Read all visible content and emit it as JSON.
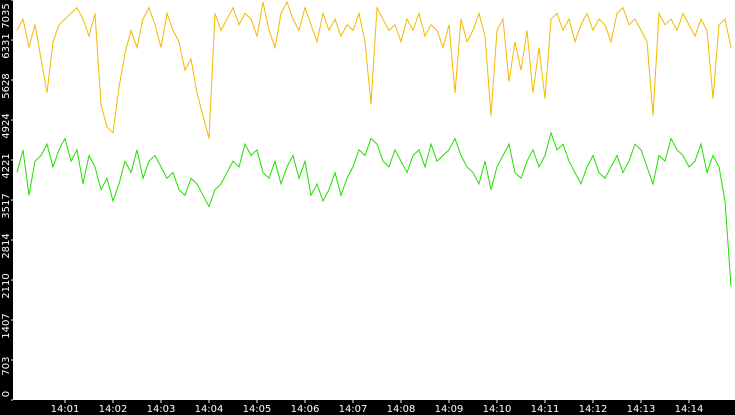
{
  "chart_data": {
    "type": "line",
    "categories": [
      null,
      null,
      null,
      null,
      null,
      null,
      null,
      null,
      "14:01",
      null,
      null,
      null,
      null,
      null,
      null,
      null,
      "14:02",
      null,
      null,
      null,
      null,
      null,
      null,
      null,
      "14:03",
      null,
      null,
      null,
      null,
      null,
      null,
      null,
      "14:04",
      null,
      null,
      null,
      null,
      null,
      null,
      null,
      "14:05",
      null,
      null,
      null,
      null,
      null,
      null,
      null,
      "14:06",
      null,
      null,
      null,
      null,
      null,
      null,
      null,
      "14:07",
      null,
      null,
      null,
      null,
      null,
      null,
      null,
      "14:08",
      null,
      null,
      null,
      null,
      null,
      null,
      null,
      "14:09",
      null,
      null,
      null,
      null,
      null,
      null,
      null,
      "14:10",
      null,
      null,
      null,
      null,
      null,
      null,
      null,
      "14:11",
      null,
      null,
      null,
      null,
      null,
      null,
      null,
      "14:12",
      null,
      null,
      null,
      null,
      null,
      null,
      null,
      "14:13",
      null,
      null,
      null,
      null,
      null,
      null,
      null,
      "14:14",
      null,
      null,
      null,
      null,
      null,
      null,
      null
    ],
    "series": [
      {
        "color": "#f5b800",
        "values": [
          6500,
          6700,
          6200,
          6600,
          6000,
          5400,
          6300,
          6600,
          6700,
          6800,
          6900,
          6700,
          6400,
          6800,
          5200,
          4800,
          4700,
          5500,
          6100,
          6500,
          6200,
          6700,
          6900,
          6600,
          6200,
          6800,
          6500,
          6300,
          5800,
          6000,
          5400,
          5000,
          4600,
          6800,
          6500,
          6700,
          6900,
          6600,
          6800,
          6700,
          6400,
          7000,
          6500,
          6200,
          6800,
          7000,
          6700,
          6500,
          6900,
          6600,
          6300,
          6800,
          6500,
          6700,
          6400,
          6600,
          6500,
          6800,
          6300,
          5200,
          6900,
          6700,
          6500,
          6600,
          6300,
          6700,
          6500,
          6800,
          6400,
          6600,
          6500,
          6200,
          6600,
          5400,
          6700,
          6300,
          6500,
          6800,
          6400,
          5000,
          6500,
          6700,
          5600,
          6300,
          5800,
          6500,
          5400,
          6200,
          5300,
          6700,
          6800,
          6500,
          6700,
          6300,
          6600,
          6800,
          6500,
          6700,
          6600,
          6300,
          6800,
          6900,
          6600,
          6700,
          6500,
          6300,
          5000,
          6800,
          6600,
          6700,
          6500,
          6800,
          6600,
          6400,
          6700,
          6500,
          5300,
          6600,
          6700,
          6200
        ]
      },
      {
        "color": "#22dd00",
        "values": [
          4000,
          4400,
          3600,
          4200,
          4300,
          4500,
          4100,
          4400,
          4600,
          4200,
          4400,
          3800,
          4300,
          4100,
          3700,
          3900,
          3500,
          3800,
          4200,
          4000,
          4400,
          3900,
          4200,
          4300,
          4100,
          3900,
          4000,
          3700,
          3600,
          3900,
          3800,
          3600,
          3400,
          3700,
          3800,
          4000,
          4200,
          4100,
          4500,
          4300,
          4400,
          4000,
          3900,
          4200,
          3800,
          4100,
          4300,
          3900,
          4200,
          3600,
          3800,
          3500,
          3700,
          4000,
          3600,
          3900,
          4100,
          4400,
          4300,
          4600,
          4500,
          4200,
          4100,
          4400,
          4200,
          4000,
          4300,
          4400,
          4100,
          4500,
          4200,
          4300,
          4400,
          4600,
          4300,
          4100,
          4000,
          3800,
          4200,
          3700,
          4100,
          4300,
          4500,
          4000,
          3900,
          4200,
          4400,
          4100,
          4300,
          4700,
          4400,
          4500,
          4200,
          4000,
          3800,
          4100,
          4300,
          4000,
          3900,
          4100,
          4300,
          4000,
          4200,
          4500,
          4400,
          4100,
          3800,
          4300,
          4200,
          4600,
          4400,
          4300,
          4100,
          4200,
          4500,
          4000,
          4300,
          4100,
          3500,
          2000
        ]
      }
    ],
    "ylim": [
      0,
      7035
    ],
    "yticks": [
      0,
      703,
      1407,
      2110,
      2814,
      3517,
      4221,
      4924,
      5628,
      6331,
      7035
    ]
  }
}
